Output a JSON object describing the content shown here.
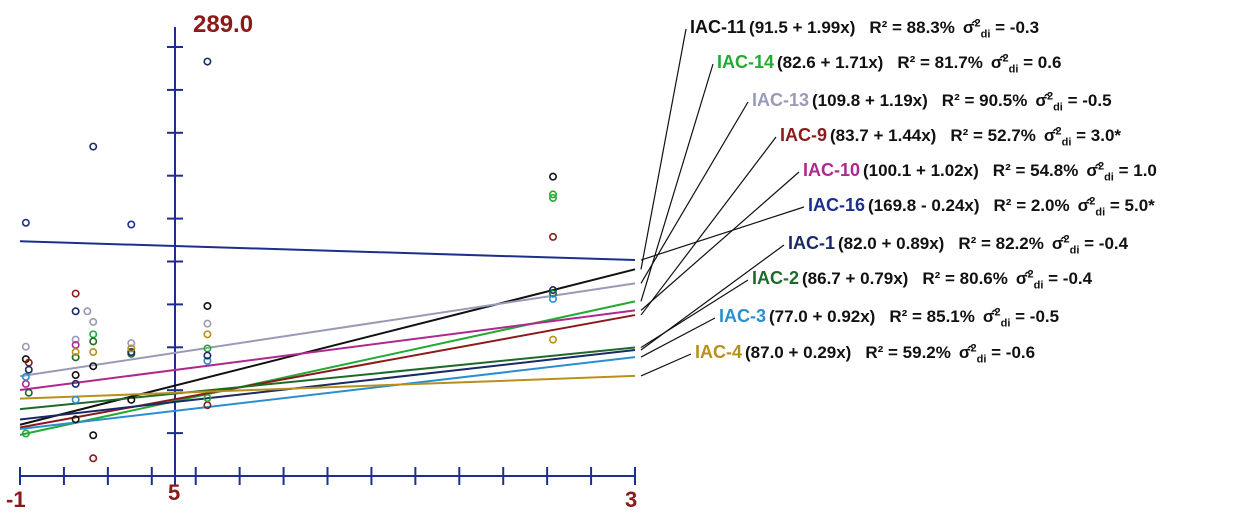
{
  "chart_data": {
    "type": "scatter",
    "y_top_label": "289.0",
    "x_ticks": [
      "-1",
      "5",
      "3"
    ],
    "series": [
      {
        "name": "IAC-11",
        "equation": "(91.5 + 1.99x)",
        "r2": "R² = 88.3%",
        "sd_label": "σ̂",
        "sd_sub": "di",
        "sd_value": "= -0.3",
        "color": "#111111",
        "intercept": 91.5,
        "slope": 1.99
      },
      {
        "name": "IAC-14",
        "equation": "(82.6 + 1.71x)",
        "r2": "R² = 81.7%",
        "sd_label": "σ̂",
        "sd_sub": "di",
        "sd_value": "= 0.6",
        "color": "#22aa33",
        "intercept": 82.6,
        "slope": 1.71
      },
      {
        "name": "IAC-13",
        "equation": "(109.8 + 1.19x)",
        "r2": "R² = 90.5%",
        "sd_label": "σ̂",
        "sd_sub": "di",
        "sd_value": "= -0.5",
        "color": "#9a9ab8",
        "intercept": 109.8,
        "slope": 1.19
      },
      {
        "name": "IAC-9",
        "equation": "(83.7 + 1.44x)",
        "r2": "R² = 52.7%",
        "sd_label": "σ̂",
        "sd_sub": "di",
        "sd_value": "= 3.0*",
        "color": "#8b1a1a",
        "intercept": 83.7,
        "slope": 1.44
      },
      {
        "name": "IAC-10",
        "equation": "(100.1 + 1.02x)",
        "r2": "R² = 54.8%",
        "sd_label": "σ̂",
        "sd_sub": "di",
        "sd_value": "= 1.0",
        "color": "#b0288f",
        "intercept": 100.1,
        "slope": 1.02
      },
      {
        "name": "IAC-16",
        "equation": "(169.8 - 0.24x)",
        "r2": "R² = 2.0%",
        "sd_label": "σ̂",
        "sd_sub": "di",
        "sd_value": "= 5.0*",
        "color": "#1c2f8c",
        "intercept": 169.8,
        "slope": -0.24
      },
      {
        "name": "IAC-1",
        "equation": "(82.0 + 0.89x)",
        "r2": "R² = 82.2%",
        "sd_label": "σ̂",
        "sd_sub": "di",
        "sd_value": "= -0.4",
        "color": "#1a2a66",
        "intercept": 82.0,
        "slope": 0.89
      },
      {
        "name": "IAC-2",
        "equation": "(86.7 + 0.79x)",
        "r2": "R² = 80.6%",
        "sd_label": "σ̂",
        "sd_sub": "di",
        "sd_value": "= -0.4",
        "color": "#1d6b2a",
        "intercept": 86.7,
        "slope": 0.79
      },
      {
        "name": "IAC-3",
        "equation": "(77.0 + 0.92x)",
        "r2": "R² = 85.1%",
        "sd_label": "σ̂",
        "sd_sub": "di",
        "sd_value": "= -0.5",
        "color": "#2a8fd0",
        "intercept": 77.0,
        "slope": 0.92
      },
      {
        "name": "IAC-4",
        "equation": "(87.0 + 0.29x)",
        "r2": "R² = 59.2%",
        "sd_label": "σ̂",
        "sd_sub": "di",
        "sd_value": "= -0.6",
        "color": "#b8901a",
        "intercept": 87.0,
        "slope": 0.29
      }
    ],
    "points": [
      {
        "series": 5,
        "x": -26.0,
        "y": 183
      },
      {
        "series": 0,
        "x": -26.0,
        "y": 106
      },
      {
        "series": 1,
        "x": -26.0,
        "y": 64
      },
      {
        "series": 2,
        "x": -26.0,
        "y": 113
      },
      {
        "series": 4,
        "x": -26.0,
        "y": 92
      },
      {
        "series": 8,
        "x": -26.0,
        "y": 96
      },
      {
        "series": 3,
        "x": -25.5,
        "y": 104
      },
      {
        "series": 6,
        "x": -25.5,
        "y": 100
      },
      {
        "series": 7,
        "x": -25.5,
        "y": 87
      },
      {
        "series": 3,
        "x": -17.5,
        "y": 143
      },
      {
        "series": 6,
        "x": -17.5,
        "y": 133
      },
      {
        "series": 2,
        "x": -15.5,
        "y": 133
      },
      {
        "series": 2,
        "x": -17.5,
        "y": 117
      },
      {
        "series": 4,
        "x": -17.5,
        "y": 114
      },
      {
        "series": 7,
        "x": -17.5,
        "y": 107
      },
      {
        "series": 9,
        "x": -17.5,
        "y": 110
      },
      {
        "series": 0,
        "x": -17.5,
        "y": 97
      },
      {
        "series": 6,
        "x": -17.5,
        "y": 92
      },
      {
        "series": 0,
        "x": -17.5,
        "y": 72
      },
      {
        "series": 8,
        "x": -17.5,
        "y": 83
      },
      {
        "series": 6,
        "x": -14.5,
        "y": 226
      },
      {
        "series": 2,
        "x": -14.5,
        "y": 127
      },
      {
        "series": 1,
        "x": -14.5,
        "y": 120
      },
      {
        "series": 7,
        "x": -14.5,
        "y": 116
      },
      {
        "series": 0,
        "x": -14.5,
        "y": 102
      },
      {
        "series": 3,
        "x": -14.5,
        "y": 50
      },
      {
        "series": 0,
        "x": -14.5,
        "y": 63
      },
      {
        "series": 9,
        "x": -14.5,
        "y": 110
      },
      {
        "series": 5,
        "x": -8.0,
        "y": 182
      },
      {
        "series": 2,
        "x": -8.0,
        "y": 115
      },
      {
        "series": 0,
        "x": -8.0,
        "y": 83
      },
      {
        "series": 7,
        "x": -8.0,
        "y": 109
      },
      {
        "series": 6,
        "x": -8.0,
        "y": 110
      },
      {
        "series": 9,
        "x": -8.0,
        "y": 112
      },
      {
        "series": 6,
        "x": 5.0,
        "y": 274
      },
      {
        "series": 0,
        "x": 5.0,
        "y": 136
      },
      {
        "series": 2,
        "x": 5.0,
        "y": 126
      },
      {
        "series": 9,
        "x": 5.0,
        "y": 120
      },
      {
        "series": 1,
        "x": 5.0,
        "y": 112
      },
      {
        "series": 8,
        "x": 5.0,
        "y": 105
      },
      {
        "series": 6,
        "x": 5.0,
        "y": 108
      },
      {
        "series": 3,
        "x": 5.0,
        "y": 80
      },
      {
        "series": 1,
        "x": 5.0,
        "y": 84
      },
      {
        "series": 0,
        "x": 64.0,
        "y": 209
      },
      {
        "series": 1,
        "x": 64.0,
        "y": 199
      },
      {
        "series": 1,
        "x": 64.0,
        "y": 197
      },
      {
        "series": 3,
        "x": 64.0,
        "y": 175
      },
      {
        "series": 6,
        "x": 64.0,
        "y": 145
      },
      {
        "series": 7,
        "x": 64.0,
        "y": 143
      },
      {
        "series": 8,
        "x": 64.0,
        "y": 140
      },
      {
        "series": 9,
        "x": 64.0,
        "y": 117
      }
    ]
  }
}
